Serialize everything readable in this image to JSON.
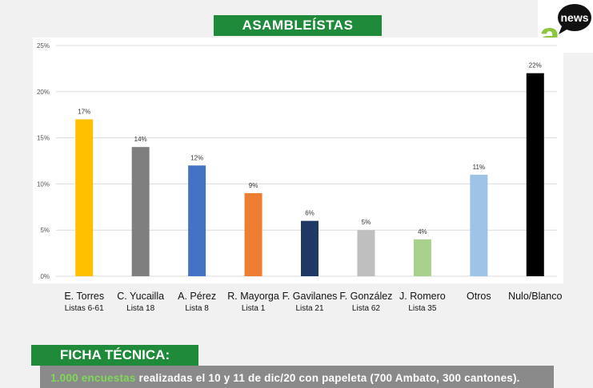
{
  "header": {
    "title": "ASAMBLEÍSTAS"
  },
  "logo": {
    "mark": "a",
    "badge": "news",
    "colors": {
      "mark": "#8cc63f",
      "badge": "#111111"
    }
  },
  "chart_data": {
    "type": "bar",
    "categories": [
      {
        "name": "E. Torres",
        "sub": "Listas 6-61"
      },
      {
        "name": "C. Yucailla",
        "sub": "Lista 18"
      },
      {
        "name": "A. Pérez",
        "sub": "Lista 8"
      },
      {
        "name": "R. Mayorga",
        "sub": "Lista 1"
      },
      {
        "name": "F. Gavilanes",
        "sub": "Lista 21"
      },
      {
        "name": "F. González",
        "sub": "Lista 62"
      },
      {
        "name": "J. Romero",
        "sub": "Lista 35"
      },
      {
        "name": "Otros",
        "sub": ""
      },
      {
        "name": "Nulo/Blanco",
        "sub": ""
      }
    ],
    "values": [
      17,
      14,
      12,
      9,
      6,
      5,
      4,
      11,
      22
    ],
    "value_labels": [
      "17%",
      "14%",
      "12%",
      "9%",
      "6%",
      "5%",
      "4%",
      "11%",
      "22%"
    ],
    "colors": [
      "#ffc000",
      "#7f7f7f",
      "#4472c4",
      "#ed7d31",
      "#1f3864",
      "#bfbfbf",
      "#a9d18e",
      "#9dc3e6",
      "#000000"
    ],
    "yticks": [
      0,
      5,
      10,
      15,
      20,
      25
    ],
    "ytick_labels": [
      "0%",
      "5%",
      "10%",
      "15%",
      "20%",
      "25%"
    ],
    "ylim": [
      0,
      25
    ],
    "grid": true,
    "title": "ASAMBLEÍSTAS",
    "xlabel": "",
    "ylabel": ""
  },
  "ficha": {
    "title": "FICHA TÉCNICA:",
    "highlight": "1.000 encuestas",
    "text": " realizadas el 10 y 11 de dic/20 con papeleta (700 Ambato, 300 cantones)."
  }
}
